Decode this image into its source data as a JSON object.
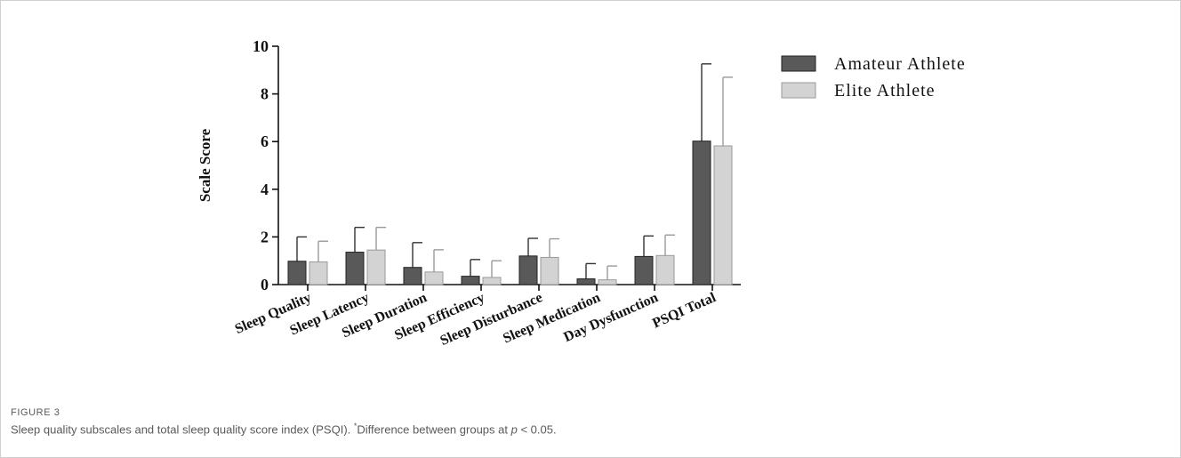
{
  "chart_data": {
    "type": "bar",
    "ylabel": "Scale Score",
    "ylim": [
      0,
      10
    ],
    "yticks": [
      "0",
      "2",
      "4",
      "6",
      "8",
      "10"
    ],
    "categories": [
      "Sleep Quality",
      "Sleep Latency",
      "Sleep Duration",
      "Sleep Efficiency",
      "Sleep Disturbance",
      "Sleep Medication",
      "Day Dysfunction",
      "PSQI Total"
    ],
    "series": [
      {
        "name": "Amateur Athlete",
        "color": "#595959",
        "values": [
          0.98,
          1.36,
          0.72,
          0.35,
          1.2,
          0.24,
          1.18,
          6.02
        ],
        "error": [
          1.02,
          1.04,
          1.04,
          0.7,
          0.74,
          0.64,
          0.86,
          3.24
        ]
      },
      {
        "name": "Elite Athlete",
        "color": "#d3d3d3",
        "values": [
          0.95,
          1.45,
          0.53,
          0.3,
          1.14,
          0.2,
          1.22,
          5.82
        ],
        "error": [
          0.87,
          0.95,
          0.93,
          0.7,
          0.78,
          0.58,
          0.86,
          2.88
        ]
      }
    ],
    "legend_position": "top-right",
    "grid": false
  },
  "caption": {
    "label": "FIGURE 3",
    "text_main": "Sleep quality subscales and total sleep quality score index (PSQI). ",
    "marker": "*",
    "text_mid": "Difference between groups at ",
    "p_symbol": "p",
    "text_end": " < 0.05."
  }
}
